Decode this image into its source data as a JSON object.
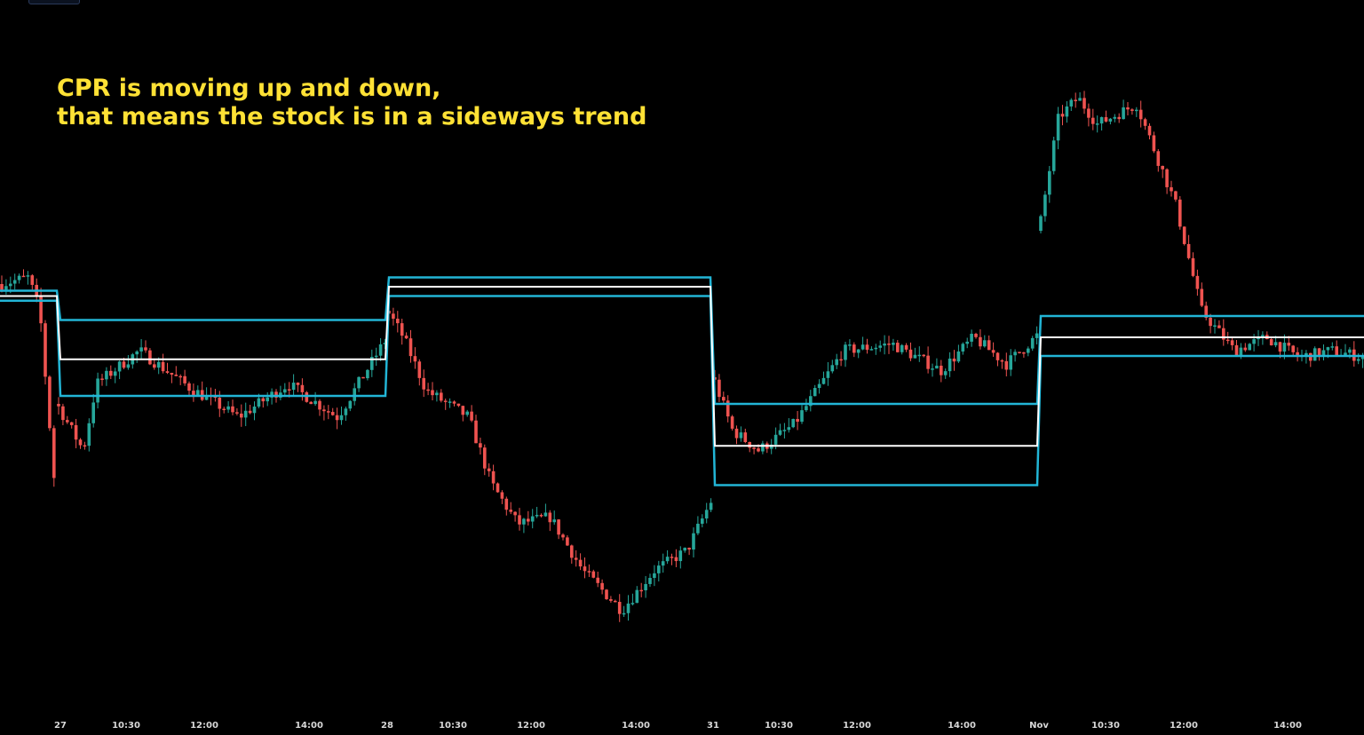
{
  "annotation": {
    "line1": "CPR is moving up and down,",
    "line2": "that means the stock is in a sideways trend"
  },
  "colors": {
    "background": "#000000",
    "bull": "#26a69a",
    "bear": "#ef5350",
    "cpr_band": "#22b5d6",
    "pivot": "#ffffff",
    "annotation": "#ffe135"
  },
  "chart_data": {
    "type": "candlestick",
    "grid": false,
    "legend": "none",
    "title": "",
    "x_ticks": [
      "27",
      "10:30",
      "12:00",
      "14:00",
      "28",
      "10:30",
      "12:00",
      "14:00",
      "31",
      "10:30",
      "12:00",
      "14:00",
      "Nov",
      "10:30",
      "12:00",
      "14:00"
    ],
    "ylim": [
      0,
      1000
    ],
    "sessions": [
      {
        "label": "27",
        "waypoints": [
          [
            0,
            420
          ],
          [
            0.08,
            350
          ],
          [
            0.12,
            450
          ],
          [
            0.25,
            500
          ],
          [
            0.4,
            445
          ],
          [
            0.55,
            400
          ],
          [
            0.7,
            450
          ],
          [
            0.85,
            400
          ],
          [
            0.95,
            480
          ],
          [
            1.0,
            520
          ]
        ]
      },
      {
        "label": "28",
        "waypoints": [
          [
            0,
            560
          ],
          [
            0.05,
            520
          ],
          [
            0.12,
            440
          ],
          [
            0.25,
            400
          ],
          [
            0.32,
            300
          ],
          [
            0.4,
            240
          ],
          [
            0.5,
            250
          ],
          [
            0.6,
            170
          ],
          [
            0.72,
            110
          ],
          [
            0.82,
            170
          ],
          [
            0.92,
            200
          ],
          [
            1.0,
            280
          ]
        ]
      },
      {
        "label": "31",
        "waypoints": [
          [
            0,
            460
          ],
          [
            0.06,
            380
          ],
          [
            0.14,
            350
          ],
          [
            0.25,
            390
          ],
          [
            0.4,
            500
          ],
          [
            0.55,
            510
          ],
          [
            0.7,
            470
          ],
          [
            0.8,
            520
          ],
          [
            0.9,
            480
          ],
          [
            1.0,
            525
          ]
        ]
      },
      {
        "label": "Nov",
        "waypoints": [
          [
            0,
            680
          ],
          [
            0.06,
            850
          ],
          [
            0.12,
            880
          ],
          [
            0.18,
            840
          ],
          [
            0.3,
            870
          ],
          [
            0.42,
            720
          ],
          [
            0.5,
            560
          ],
          [
            0.6,
            500
          ],
          [
            0.7,
            520
          ],
          [
            0.8,
            490
          ],
          [
            0.9,
            500
          ],
          [
            1.0,
            490
          ]
        ]
      }
    ],
    "cpr": [
      {
        "session": "before 27",
        "top": 590,
        "pivot": 582,
        "bottom": 575
      },
      {
        "session": "27",
        "top": 546,
        "pivot": 487,
        "bottom": 432
      },
      {
        "session": "28",
        "top": 610,
        "pivot": 596,
        "bottom": 582
      },
      {
        "session": "31",
        "top": 420,
        "pivot": 357,
        "bottom": 298
      },
      {
        "session": "Nov",
        "top": 552,
        "pivot": 520,
        "bottom": 492
      }
    ]
  }
}
